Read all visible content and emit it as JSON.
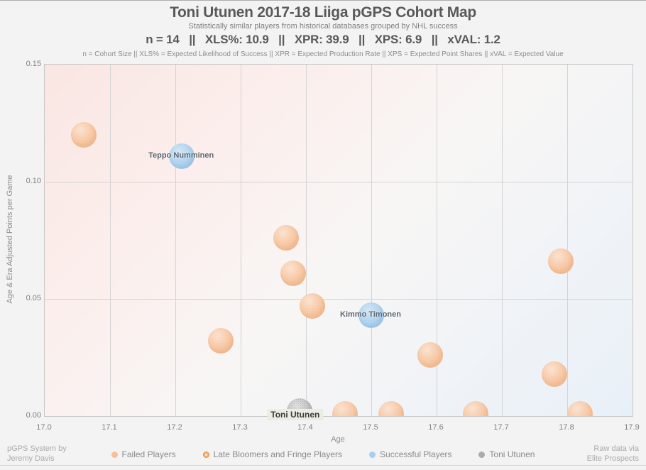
{
  "header": {
    "title": "Toni Utunen 2017-18 Liiga pGPS Cohort Map",
    "subtitle": "Statistically similar players from historical databases grouped by NHL success",
    "stats_line": "n = 14   ||   XLS%: 10.9   ||   XPR: 39.9   ||   XPS: 6.9   ||   xVAL: 1.2",
    "definitions_line": "n = Cohort Size || XLS% = Expected Likelihood of Success || XPR = Expected Production Rate || XPS = Expected Point Shares || xVAL = Expected Value"
  },
  "chart_data": {
    "type": "scatter",
    "title": "Toni Utunen 2017-18 Liiga pGPS Cohort Map",
    "xlabel": "Age",
    "ylabel": "Age & Era Adjusted Points per Game",
    "xlim": [
      17.0,
      17.9
    ],
    "ylim": [
      0,
      0.15
    ],
    "xticks": [
      "17.0",
      "17.1",
      "17.2",
      "17.3",
      "17.4",
      "17.5",
      "17.6",
      "17.7",
      "17.8",
      "17.9"
    ],
    "xtick_values": [
      17.0,
      17.1,
      17.2,
      17.3,
      17.4,
      17.5,
      17.6,
      17.7,
      17.8,
      17.9
    ],
    "yticks": [
      "0.00",
      "0.05",
      "0.10",
      "0.15"
    ],
    "ytick_values": [
      0.0,
      0.05,
      0.1,
      0.15
    ],
    "grid": true,
    "legend_position": "bottom",
    "marker_radius_px": 18,
    "series": [
      {
        "name": "Failed Players",
        "css": "failed",
        "color": "#F5C09A",
        "points": [
          {
            "age": 17.06,
            "ppg": 0.12
          },
          {
            "age": 17.27,
            "ppg": 0.032
          },
          {
            "age": 17.37,
            "ppg": 0.076
          },
          {
            "age": 17.38,
            "ppg": 0.061
          },
          {
            "age": 17.41,
            "ppg": 0.047
          },
          {
            "age": 17.46,
            "ppg": 0.001
          },
          {
            "age": 17.53,
            "ppg": 0.001
          },
          {
            "age": 17.59,
            "ppg": 0.026
          },
          {
            "age": 17.66,
            "ppg": 0.001
          },
          {
            "age": 17.78,
            "ppg": 0.018
          },
          {
            "age": 17.79,
            "ppg": 0.066
          },
          {
            "age": 17.82,
            "ppg": 0.001
          }
        ]
      },
      {
        "name": "Late Bloomers and Fringe Players",
        "css": "late",
        "color": "#EDA360",
        "points": []
      },
      {
        "name": "Successful Players",
        "css": "success",
        "color": "#A9CFED",
        "points": [
          {
            "age": 17.21,
            "ppg": 0.111,
            "label": "Teppo Numminen"
          },
          {
            "age": 17.5,
            "ppg": 0.043,
            "label": "Kimmo Timonen"
          }
        ]
      },
      {
        "name": "Toni Utunen",
        "css": "toni",
        "color": "#ABABAB",
        "points": [
          {
            "age": 17.39,
            "ppg": 0.002,
            "label": "Toni Utunen",
            "label_style": "toni-label",
            "label_dx": -5,
            "label_dy": 6
          }
        ]
      }
    ]
  },
  "legend": {
    "items": [
      {
        "label": "Failed Players",
        "css": "failed",
        "color": "#F5C09A"
      },
      {
        "label": "Late Bloomers and Fringe Players",
        "css": "late",
        "color": "#EDA360"
      },
      {
        "label": "Successful Players",
        "css": "success",
        "color": "#A9CFED"
      },
      {
        "label": "Toni Utunen",
        "css": "toni",
        "color": "#ABABAB"
      }
    ]
  },
  "footer": {
    "credit_left_line1": "pGPS System by",
    "credit_left_line2": "Jeremy Davis",
    "credit_right_line1": "Raw data via",
    "credit_right_line2": "Elite Prospects"
  }
}
